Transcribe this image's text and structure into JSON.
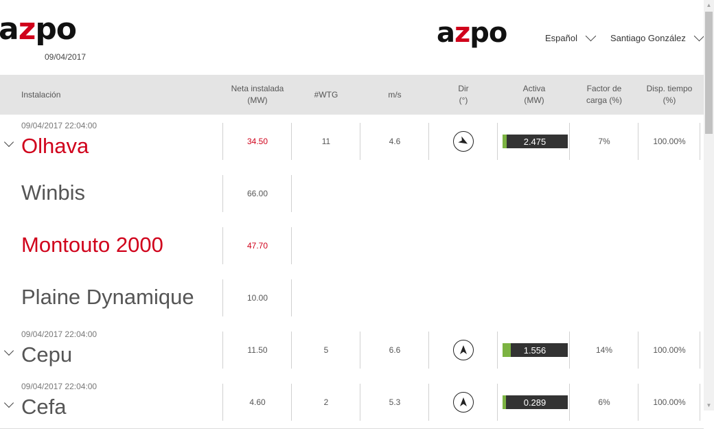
{
  "brand": {
    "logo_left_pre": "a",
    "logo_left_z": "z",
    "logo_left_post": "po",
    "logo_right_pre": "a",
    "logo_right_z": "z",
    "logo_right_post": "po",
    "date": "09/04/2017"
  },
  "topnav": {
    "language": "Español",
    "user": "Santiago González"
  },
  "table": {
    "columns": {
      "installation": "Instalación",
      "net_l1": "Neta instalada",
      "net_l2": "(MW)",
      "wtg": "#WTG",
      "speed": "m/s",
      "dir_l1": "Dir",
      "dir_l2": "(°)",
      "active_l1": "Activa",
      "active_l2": "(MW)",
      "load_l1": "Factor de",
      "load_l2": "carga (%)",
      "avail_l1": "Disp. tiempo",
      "avail_l2": "(%)"
    },
    "rows": [
      {
        "timestamp": "09/04/2017 22:04:00",
        "name": "Olhava",
        "net": "34.50",
        "wtg": "11",
        "speed": "4.6",
        "dir_deg": 120,
        "active": "2.475",
        "active_fraction": 0.072,
        "load": "7%",
        "avail": "100.00%"
      },
      {
        "name": "Winbis",
        "net": "66.00"
      },
      {
        "name": "Montouto 2000",
        "net": "47.70"
      },
      {
        "name": "Plaine Dynamique",
        "net": "10.00"
      },
      {
        "timestamp": "09/04/2017 22:04:00",
        "name": "Cepu",
        "net": "11.50",
        "wtg": "5",
        "speed": "6.6",
        "dir_deg": 0,
        "active": "1.556",
        "active_fraction": 0.135,
        "load": "14%",
        "avail": "100.00%"
      },
      {
        "timestamp": "09/04/2017 22:04:00",
        "name": "Cefa",
        "net": "4.60",
        "wtg": "2",
        "speed": "5.3",
        "dir_deg": 0,
        "active": "0.289",
        "active_fraction": 0.063,
        "load": "6%",
        "avail": "100.00%"
      }
    ]
  },
  "colors": {
    "accent_red": "#d0021b",
    "bar_dark": "#333333",
    "bar_green": "#7cb342",
    "header_bg": "#e4e4e4"
  },
  "icons": {
    "expand": "chevron-down-icon",
    "direction": "compass-arrow-icon"
  }
}
